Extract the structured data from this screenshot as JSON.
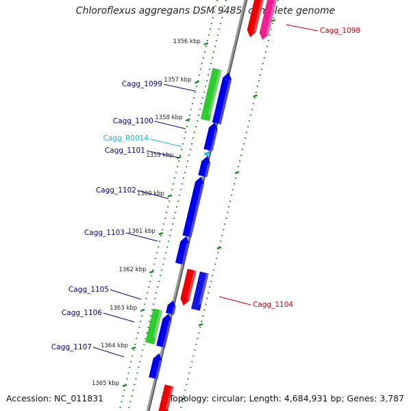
{
  "title": "Chloroflexus aggregans DSM 9485, complete genome",
  "footer": {
    "accession": "Accession: NC_011831",
    "summary": "Topology: circular; Length: 4,684,931 bp; Genes: 3,787"
  },
  "colors": {
    "cds_forward": "#0000ee",
    "cds_reverse": "#ee0000",
    "pseudo": "#ee1f8f",
    "other_feature": "#2fcc2f",
    "rna": "#21c6e6",
    "ruler": "#138a13",
    "label_forward": "#00008b",
    "label_reverse": "#cc0000",
    "label_rna": "#1cb6d8"
  },
  "ticks": [
    "1356 kbp",
    "1357 kbp",
    "1358 kbp",
    "1359 kbp",
    "1360 kbp",
    "1361 kbp",
    "1362 kbp",
    "1363 kbp",
    "1364 kbp",
    "1365 kbp"
  ],
  "genes": [
    {
      "label": "Cagg_1098",
      "strand": "reverse"
    },
    {
      "label": "Cagg_1099",
      "strand": "forward"
    },
    {
      "label": "Cagg_1100",
      "strand": "forward"
    },
    {
      "label": "Cagg_R0014",
      "strand": "rna"
    },
    {
      "label": "Cagg_1101",
      "strand": "forward"
    },
    {
      "label": "Cagg_1102",
      "strand": "forward"
    },
    {
      "label": "Cagg_1103",
      "strand": "forward"
    },
    {
      "label": "Cagg_1104",
      "strand": "reverse"
    },
    {
      "label": "Cagg_1105",
      "strand": "forward"
    },
    {
      "label": "Cagg_1106",
      "strand": "forward"
    },
    {
      "label": "Cagg_1107",
      "strand": "forward"
    }
  ]
}
